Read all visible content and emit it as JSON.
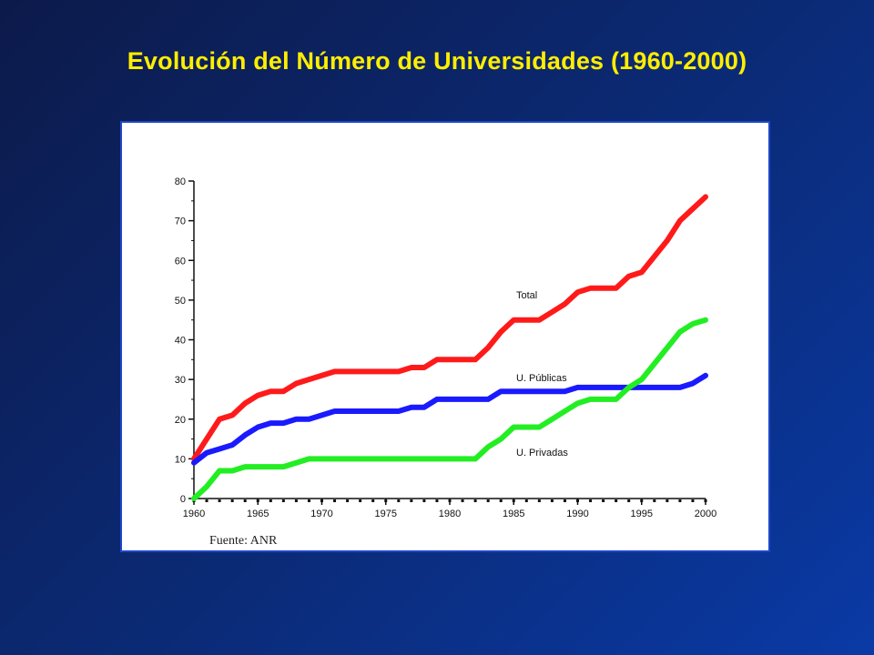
{
  "slide": {
    "title": "Evolución del Número de Universidades (1960-2000)"
  },
  "colors": {
    "background": "#0b2b78",
    "title": "#ffee00",
    "total": "#ff1a1a",
    "publicas": "#1a1aff",
    "privadas": "#22ee22"
  },
  "source": "Fuente: ANR",
  "chart_data": {
    "type": "line",
    "title": "",
    "xlabel": "",
    "ylabel": "",
    "xlim": [
      1960,
      2000
    ],
    "ylim": [
      0,
      80
    ],
    "x_ticks": [
      1960,
      1965,
      1970,
      1975,
      1980,
      1985,
      1990,
      1995,
      2000
    ],
    "y_ticks": [
      0,
      10,
      20,
      30,
      40,
      50,
      60,
      70,
      80
    ],
    "grid": false,
    "legend": "inline labels",
    "x": [
      1960,
      1961,
      1962,
      1963,
      1964,
      1965,
      1966,
      1967,
      1968,
      1969,
      1970,
      1971,
      1972,
      1973,
      1974,
      1975,
      1976,
      1977,
      1978,
      1979,
      1980,
      1981,
      1982,
      1983,
      1984,
      1985,
      1986,
      1987,
      1988,
      1989,
      1990,
      1991,
      1992,
      1993,
      1994,
      1995,
      1996,
      1997,
      1998,
      1999,
      2000
    ],
    "series": [
      {
        "name": "Total",
        "color": "#ff1a1a",
        "values": [
          10,
          15,
          20,
          21,
          24,
          26,
          27,
          27,
          29,
          30,
          31,
          32,
          32,
          32,
          32,
          32,
          32,
          33,
          33,
          35,
          35,
          35,
          35,
          38,
          42,
          45,
          45,
          45,
          47,
          49,
          52,
          53,
          53,
          53,
          56,
          57,
          61,
          65,
          70,
          73,
          76
        ]
      },
      {
        "name": "U. Públicas",
        "color": "#1a1aff",
        "values": [
          9,
          11.5,
          12.5,
          13.5,
          16,
          18,
          19,
          19,
          20,
          20,
          21,
          22,
          22,
          22,
          22,
          22,
          22,
          23,
          23,
          25,
          25,
          25,
          25,
          25,
          27,
          27,
          27,
          27,
          27,
          27,
          28,
          28,
          28,
          28,
          28,
          28,
          28,
          28,
          28,
          29,
          31
        ]
      },
      {
        "name": "U. Privadas",
        "color": "#22ee22",
        "values": [
          0,
          3,
          7,
          7,
          8,
          8,
          8,
          8,
          9,
          10,
          10,
          10,
          10,
          10,
          10,
          10,
          10,
          10,
          10,
          10,
          10,
          10,
          10,
          13,
          15,
          18,
          18,
          18,
          20,
          22,
          24,
          25,
          25,
          25,
          28,
          30,
          34,
          38,
          42,
          44,
          45
        ]
      }
    ]
  }
}
